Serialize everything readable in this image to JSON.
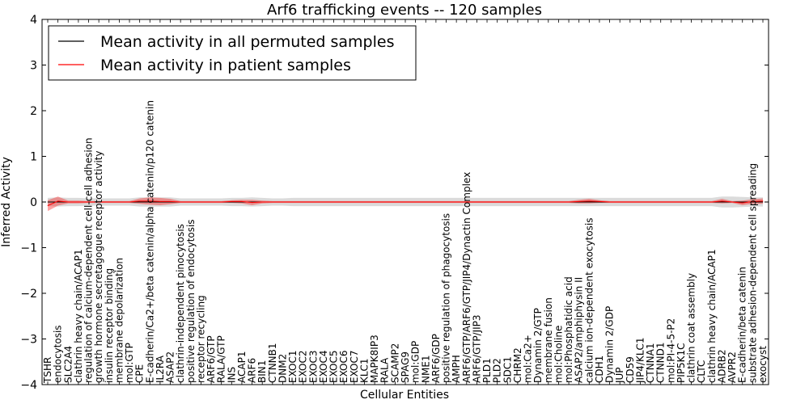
{
  "chart_data": {
    "type": "line",
    "title": "Arf6 trafficking events -- 120 samples",
    "xlabel": "Cellular Entities",
    "ylabel": "Inferred Activity",
    "ylim": [
      -4,
      4
    ],
    "yticks": [
      4,
      3,
      2,
      1,
      0,
      -1,
      -2,
      -3,
      -4
    ],
    "grid": false,
    "legend_position": "top-left",
    "colors": {
      "permuted": "#000000",
      "patient": "#ff0000",
      "permuted_band": "#b0b0b0",
      "patient_band": "#ff0000"
    },
    "legend": [
      {
        "series": "permuted",
        "label": "Mean activity in all permuted samples"
      },
      {
        "series": "patient",
        "label": "Mean activity in patient samples"
      }
    ],
    "categories": [
      "TSHR",
      "endocytosis",
      "SLC2A4",
      "clathrin heavy chain/ACAP1",
      "regulation of calcium-dependent cell-cell adhesion",
      "growth hormone secretagogue receptor activity",
      "insulin receptor binding",
      "membrane depolarization",
      "mol:GTP",
      "CPE",
      "E-cadherin/Ca2+/beta catenin/alpha catenin/p120 catenin",
      "IL2RA",
      "ASAP2",
      "clathrin-independent pinocytosis",
      "positive regulation of endocytosis",
      "receptor recycling",
      "ARF6/GTP",
      "RALA/GTP",
      "INS",
      "ACAP1",
      "ARF6",
      "BIN1",
      "CTNNB1",
      "DNM2",
      "EXOC1",
      "EXOC2",
      "EXOC3",
      "EXOC4",
      "EXOC5",
      "EXOC6",
      "EXOC7",
      "KLC1",
      "MAPK8IP3",
      "RALA",
      "SCAMP2",
      "SPAG9",
      "mol:GDP",
      "NME1",
      "ARF6/GDP",
      "positive regulation of phagocytosis",
      "AMPH",
      "ARF6/GTP/ARF6/GTP/JIP4/Dynactin Complex",
      "ARF6/GTP/JIP3",
      "PLD1",
      "PLD2",
      "SDC1",
      "CHRM2",
      "mol:Ca2+",
      "Dynamin 2/GTP",
      "membrane fusion",
      "mol:Choline",
      "mol:Phosphatidic acid",
      "ASAP2/amphiphysin II",
      "calcium ion-dependent exocytosis",
      "CDH1",
      "Dynamin 2/GDP",
      "JUP",
      "CD59",
      "JIP4/KLC1",
      "CTNNA1",
      "CTNND1",
      "mol:PI-4-5-P2",
      "PIP5K1C",
      "clathrin coat assembly",
      "CLTC",
      "clathrin heavy chain/ACAP1",
      "ADRB2",
      "AVPR2",
      "E-cadherin/beta catenin",
      "substrate adhesion-dependent cell spreading",
      "exocyst"
    ],
    "series": [
      {
        "name": "Mean activity in all permuted samples",
        "key": "permuted",
        "values": [
          0,
          0,
          0,
          0,
          0,
          0,
          0,
          0,
          0,
          0,
          0,
          0,
          0,
          0,
          0,
          0,
          0,
          0,
          0,
          0,
          0,
          0,
          0,
          0,
          0,
          0,
          0,
          0,
          0,
          0,
          0,
          0,
          0,
          0,
          0,
          0,
          0,
          0,
          0,
          0,
          0,
          0,
          0,
          0,
          0,
          0,
          0,
          0,
          0,
          0,
          0,
          0,
          0,
          0,
          0,
          0,
          0,
          0,
          0,
          0,
          0,
          0,
          0,
          0,
          0,
          0,
          0,
          0,
          0,
          0,
          0
        ],
        "band": [
          0.09,
          0.1,
          0.09,
          0.09,
          0.08,
          0.08,
          0.08,
          0.08,
          0.08,
          0.1,
          0.1,
          0.1,
          0.1,
          0.08,
          0.08,
          0.08,
          0.08,
          0.08,
          0.09,
          0.09,
          0.1,
          0.09,
          0.08,
          0.08,
          0.09,
          0.09,
          0.09,
          0.09,
          0.09,
          0.09,
          0.09,
          0.09,
          0.09,
          0.09,
          0.09,
          0.09,
          0.09,
          0.09,
          0.09,
          0.09,
          0.09,
          0.09,
          0.09,
          0.09,
          0.09,
          0.09,
          0.09,
          0.09,
          0.09,
          0.09,
          0.09,
          0.09,
          0.09,
          0.09,
          0.09,
          0.09,
          0.09,
          0.09,
          0.09,
          0.09,
          0.09,
          0.09,
          0.09,
          0.09,
          0.09,
          0.09,
          0.12,
          0.12,
          0.11,
          0.1,
          0.1
        ]
      },
      {
        "name": "Mean activity in patient samples",
        "key": "patient",
        "values": [
          -0.08,
          0.02,
          0.0,
          0.0,
          0.0,
          0.0,
          0.0,
          0.0,
          0.0,
          0.02,
          0.02,
          0.01,
          0.01,
          0.0,
          0.0,
          0.0,
          0.0,
          0.0,
          0.01,
          0.01,
          -0.01,
          0.0,
          0.0,
          0.0,
          0.0,
          0.0,
          0.0,
          0.0,
          0.0,
          0.0,
          0.0,
          0.0,
          0.0,
          0.0,
          0.0,
          0.0,
          0.0,
          0.0,
          0.0,
          0.0,
          0.0,
          0.0,
          0.0,
          0.0,
          0.0,
          0.0,
          0.0,
          0.0,
          0.0,
          0.0,
          0.0,
          0.0,
          0.01,
          0.02,
          0.01,
          0.0,
          0.0,
          0.0,
          0.0,
          0.0,
          0.0,
          0.0,
          0.0,
          0.0,
          0.0,
          0.0,
          0.02,
          0.0,
          -0.02,
          0.01,
          0.02
        ],
        "band": [
          0.12,
          0.1,
          0.03,
          0.03,
          0.02,
          0.02,
          0.02,
          0.02,
          0.02,
          0.06,
          0.08,
          0.08,
          0.06,
          0.02,
          0.02,
          0.02,
          0.02,
          0.02,
          0.03,
          0.04,
          0.06,
          0.03,
          0.02,
          0.02,
          0.02,
          0.02,
          0.02,
          0.02,
          0.02,
          0.02,
          0.02,
          0.02,
          0.02,
          0.02,
          0.02,
          0.02,
          0.02,
          0.02,
          0.02,
          0.02,
          0.02,
          0.02,
          0.02,
          0.02,
          0.02,
          0.02,
          0.02,
          0.02,
          0.02,
          0.02,
          0.02,
          0.02,
          0.04,
          0.05,
          0.03,
          0.02,
          0.02,
          0.02,
          0.02,
          0.02,
          0.02,
          0.02,
          0.02,
          0.02,
          0.02,
          0.02,
          0.05,
          0.02,
          0.05,
          0.05,
          0.06
        ]
      }
    ]
  }
}
